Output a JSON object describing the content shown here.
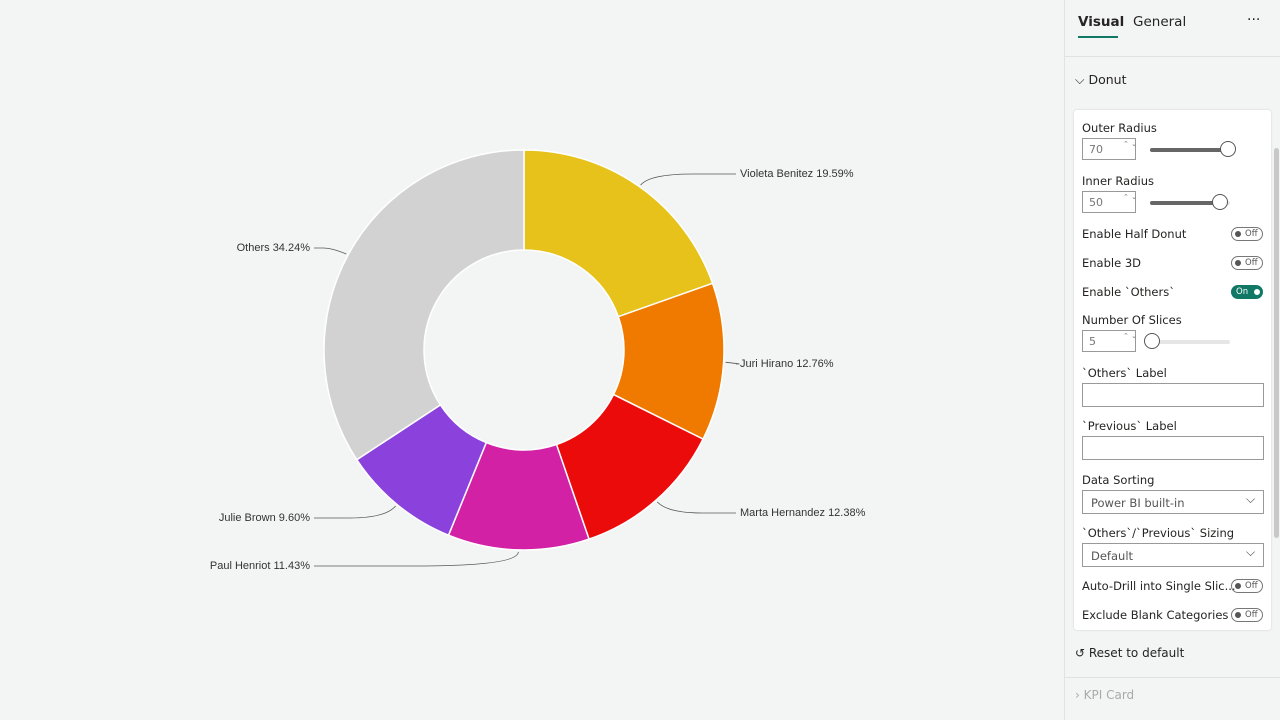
{
  "chart_data": {
    "type": "donut",
    "categories": [
      "Violeta Benitez",
      "Juri Hirano",
      "Marta Hernandez",
      "Paul Henriot",
      "Julie Brown",
      "Others"
    ],
    "values": [
      19.59,
      12.76,
      12.38,
      11.43,
      9.6,
      34.24
    ],
    "value_labels": [
      "19.59%",
      "12.76%",
      "12.38%",
      "11.43%",
      "9.60%",
      "34.24%"
    ],
    "colors": [
      "#e6c21a",
      "#f07a00",
      "#ec0b0b",
      "#d321a6",
      "#8b42dd",
      "#d2d2d2"
    ]
  },
  "panel": {
    "tabs": [
      "Visual",
      "General"
    ],
    "section": "Donut",
    "controls": [
      {
        "label": "Outer Radius",
        "value": 70
      },
      {
        "label": "Inner Radius",
        "value": 50
      },
      {
        "label": "Enable Half Donut",
        "value": "Off"
      },
      {
        "label": "Enable 3D",
        "value": "Off"
      },
      {
        "label": "Enable `Others`",
        "value": "On"
      },
      {
        "label": "Number Of Slices",
        "value": 5
      },
      {
        "label": "`Others` Label"
      },
      {
        "label": "`Previous` Label"
      },
      {
        "label": "Data Sorting",
        "value": "Power BI built-in"
      },
      {
        "label": "`Others`/`Previous` Sizing",
        "value": "Default"
      },
      {
        "label": "Auto-Drill into Single Slic...",
        "value": "Off"
      },
      {
        "label": "Exclude Blank Categories",
        "value": "Off"
      }
    ],
    "reset": "Reset to default",
    "next_section": "KPI Card"
  }
}
